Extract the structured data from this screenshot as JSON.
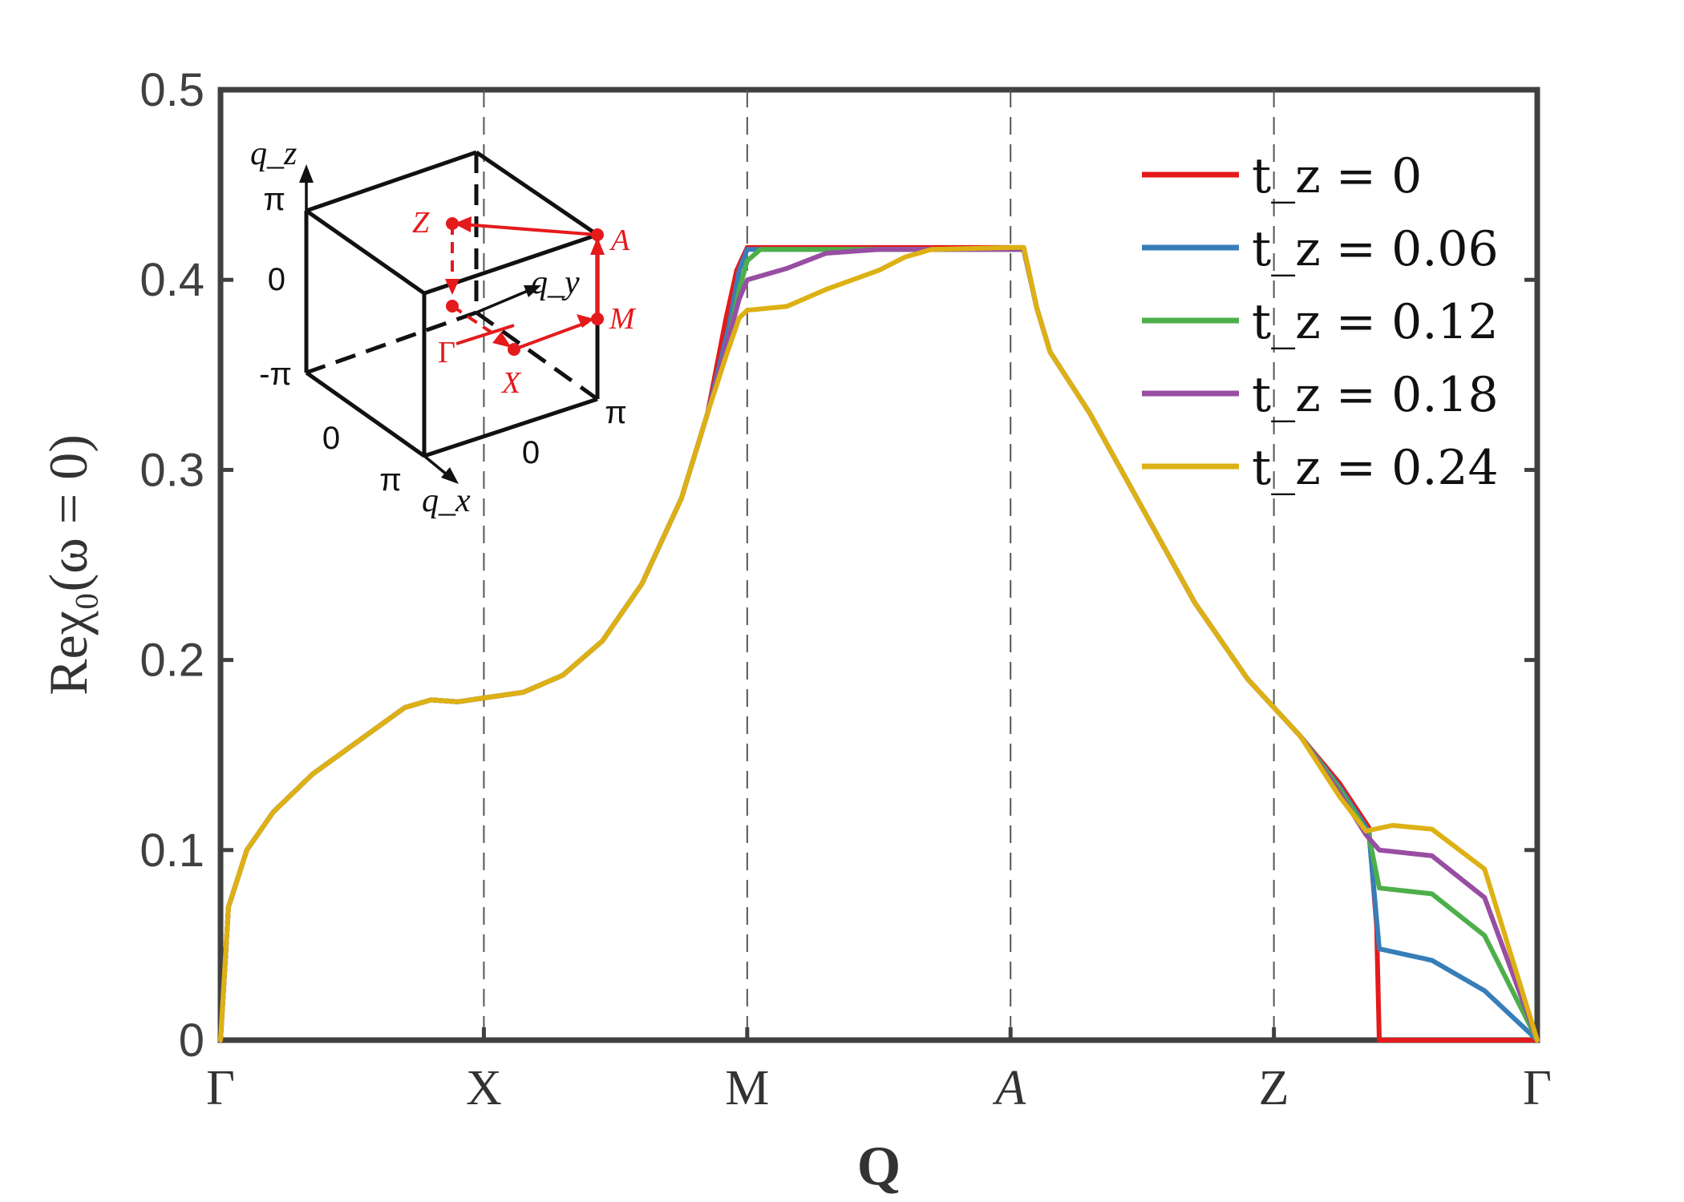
{
  "chart_data": {
    "type": "line",
    "xlabel": "Q",
    "ylabel": "Reχ₀(ω = 0)",
    "ylim": [
      0,
      0.5
    ],
    "yticks": [
      "0",
      "0.1",
      "0.2",
      "0.3",
      "0.4",
      "0.5"
    ],
    "x_ticks": [
      "Γ",
      "X",
      "M",
      "A",
      "Z",
      "Γ"
    ],
    "grid": "dashed vertical lines at X, M, A, Z",
    "legend_position": "top-right",
    "series": [
      {
        "name": "t_z = 0",
        "color": "#e41a1c",
        "points": [
          [
            0,
            0
          ],
          [
            0.03,
            0.07
          ],
          [
            0.1,
            0.1
          ],
          [
            0.2,
            0.12
          ],
          [
            0.35,
            0.14
          ],
          [
            0.5,
            0.155
          ],
          [
            0.6,
            0.165
          ],
          [
            0.7,
            0.175
          ],
          [
            0.8,
            0.179
          ],
          [
            0.9,
            0.178
          ],
          [
            1,
            0.18
          ],
          [
            1.15,
            0.183
          ],
          [
            1.3,
            0.192
          ],
          [
            1.45,
            0.21
          ],
          [
            1.6,
            0.24
          ],
          [
            1.75,
            0.285
          ],
          [
            1.85,
            0.33
          ],
          [
            1.92,
            0.38
          ],
          [
            1.96,
            0.405
          ],
          [
            2.0,
            0.417
          ],
          [
            2.5,
            0.417
          ],
          [
            3.0,
            0.417
          ],
          [
            3.05,
            0.417
          ],
          [
            3.1,
            0.385
          ],
          [
            3.15,
            0.362
          ],
          [
            3.3,
            0.33
          ],
          [
            3.5,
            0.28
          ],
          [
            3.7,
            0.23
          ],
          [
            3.9,
            0.19
          ],
          [
            4.1,
            0.16
          ],
          [
            4.25,
            0.135
          ],
          [
            4.36,
            0.112
          ],
          [
            4.39,
            0.06
          ],
          [
            4.4,
            0
          ],
          [
            5,
            0
          ]
        ]
      },
      {
        "name": "t_z = 0.06",
        "color": "#377eb8",
        "points": [
          [
            0,
            0
          ],
          [
            0.03,
            0.07
          ],
          [
            0.1,
            0.1
          ],
          [
            0.2,
            0.12
          ],
          [
            0.35,
            0.14
          ],
          [
            0.5,
            0.155
          ],
          [
            0.6,
            0.165
          ],
          [
            0.7,
            0.175
          ],
          [
            0.8,
            0.179
          ],
          [
            0.9,
            0.178
          ],
          [
            1,
            0.18
          ],
          [
            1.15,
            0.183
          ],
          [
            1.3,
            0.192
          ],
          [
            1.45,
            0.21
          ],
          [
            1.6,
            0.24
          ],
          [
            1.75,
            0.285
          ],
          [
            1.85,
            0.33
          ],
          [
            1.93,
            0.375
          ],
          [
            1.97,
            0.405
          ],
          [
            2.0,
            0.416
          ],
          [
            2.5,
            0.416
          ],
          [
            3.0,
            0.416
          ],
          [
            3.05,
            0.416
          ],
          [
            3.1,
            0.385
          ],
          [
            3.15,
            0.362
          ],
          [
            3.3,
            0.33
          ],
          [
            3.5,
            0.28
          ],
          [
            3.7,
            0.23
          ],
          [
            3.9,
            0.19
          ],
          [
            4.1,
            0.16
          ],
          [
            4.25,
            0.133
          ],
          [
            4.36,
            0.11
          ],
          [
            4.4,
            0.048
          ],
          [
            4.6,
            0.042
          ],
          [
            4.8,
            0.026
          ],
          [
            5,
            0
          ]
        ]
      },
      {
        "name": "t_z = 0.12",
        "color": "#4daf4a",
        "points": [
          [
            0,
            0
          ],
          [
            0.03,
            0.07
          ],
          [
            0.1,
            0.1
          ],
          [
            0.2,
            0.12
          ],
          [
            0.35,
            0.14
          ],
          [
            0.5,
            0.155
          ],
          [
            0.6,
            0.165
          ],
          [
            0.7,
            0.175
          ],
          [
            0.8,
            0.179
          ],
          [
            0.9,
            0.178
          ],
          [
            1,
            0.18
          ],
          [
            1.15,
            0.183
          ],
          [
            1.3,
            0.192
          ],
          [
            1.45,
            0.21
          ],
          [
            1.6,
            0.24
          ],
          [
            1.75,
            0.285
          ],
          [
            1.85,
            0.33
          ],
          [
            1.93,
            0.37
          ],
          [
            1.97,
            0.395
          ],
          [
            2.0,
            0.41
          ],
          [
            2.05,
            0.416
          ],
          [
            2.5,
            0.416
          ],
          [
            3.0,
            0.416
          ],
          [
            3.05,
            0.416
          ],
          [
            3.1,
            0.385
          ],
          [
            3.15,
            0.362
          ],
          [
            3.3,
            0.33
          ],
          [
            3.5,
            0.28
          ],
          [
            3.7,
            0.23
          ],
          [
            3.9,
            0.19
          ],
          [
            4.1,
            0.16
          ],
          [
            4.25,
            0.132
          ],
          [
            4.36,
            0.108
          ],
          [
            4.4,
            0.08
          ],
          [
            4.6,
            0.077
          ],
          [
            4.8,
            0.055
          ],
          [
            5,
            0
          ]
        ]
      },
      {
        "name": "t_z = 0.18",
        "color": "#984ea3",
        "points": [
          [
            0,
            0
          ],
          [
            0.03,
            0.07
          ],
          [
            0.1,
            0.1
          ],
          [
            0.2,
            0.12
          ],
          [
            0.35,
            0.14
          ],
          [
            0.5,
            0.155
          ],
          [
            0.6,
            0.165
          ],
          [
            0.7,
            0.175
          ],
          [
            0.8,
            0.179
          ],
          [
            0.9,
            0.178
          ],
          [
            1,
            0.18
          ],
          [
            1.15,
            0.183
          ],
          [
            1.3,
            0.192
          ],
          [
            1.45,
            0.21
          ],
          [
            1.6,
            0.24
          ],
          [
            1.75,
            0.285
          ],
          [
            1.85,
            0.33
          ],
          [
            1.93,
            0.37
          ],
          [
            1.97,
            0.39
          ],
          [
            2.0,
            0.4
          ],
          [
            2.15,
            0.406
          ],
          [
            2.3,
            0.414
          ],
          [
            2.5,
            0.416
          ],
          [
            3.0,
            0.416
          ],
          [
            3.05,
            0.416
          ],
          [
            3.1,
            0.385
          ],
          [
            3.15,
            0.362
          ],
          [
            3.3,
            0.33
          ],
          [
            3.5,
            0.28
          ],
          [
            3.7,
            0.23
          ],
          [
            3.9,
            0.19
          ],
          [
            4.1,
            0.16
          ],
          [
            4.25,
            0.13
          ],
          [
            4.35,
            0.108
          ],
          [
            4.4,
            0.1
          ],
          [
            4.6,
            0.097
          ],
          [
            4.8,
            0.075
          ],
          [
            5,
            0
          ]
        ]
      },
      {
        "name": "t_z = 0.24",
        "color": "#ddb114",
        "points": [
          [
            0,
            0
          ],
          [
            0.03,
            0.07
          ],
          [
            0.1,
            0.1
          ],
          [
            0.2,
            0.12
          ],
          [
            0.35,
            0.14
          ],
          [
            0.5,
            0.155
          ],
          [
            0.6,
            0.165
          ],
          [
            0.7,
            0.175
          ],
          [
            0.8,
            0.179
          ],
          [
            0.9,
            0.178
          ],
          [
            1,
            0.18
          ],
          [
            1.15,
            0.183
          ],
          [
            1.3,
            0.192
          ],
          [
            1.45,
            0.21
          ],
          [
            1.6,
            0.24
          ],
          [
            1.75,
            0.285
          ],
          [
            1.85,
            0.33
          ],
          [
            1.92,
            0.36
          ],
          [
            1.97,
            0.38
          ],
          [
            2.0,
            0.384
          ],
          [
            2.15,
            0.386
          ],
          [
            2.3,
            0.395
          ],
          [
            2.5,
            0.405
          ],
          [
            2.6,
            0.412
          ],
          [
            2.7,
            0.416
          ],
          [
            3.0,
            0.417
          ],
          [
            3.05,
            0.417
          ],
          [
            3.1,
            0.385
          ],
          [
            3.15,
            0.362
          ],
          [
            3.3,
            0.33
          ],
          [
            3.5,
            0.28
          ],
          [
            3.7,
            0.23
          ],
          [
            3.9,
            0.19
          ],
          [
            4.1,
            0.16
          ],
          [
            4.25,
            0.128
          ],
          [
            4.35,
            0.11
          ],
          [
            4.45,
            0.113
          ],
          [
            4.6,
            0.111
          ],
          [
            4.8,
            0.09
          ],
          [
            5,
            0
          ]
        ]
      }
    ]
  },
  "inset": {
    "axis_qz": "q_z",
    "axis_qy": "q_y",
    "axis_qx": "q_x",
    "qz_ticks": [
      "π",
      "0",
      "-π"
    ],
    "qx_ticks": [
      "0",
      "π"
    ],
    "qy_ticks": [
      "0",
      "π"
    ],
    "points": [
      "Z",
      "A",
      "M",
      "Γ",
      "X"
    ]
  }
}
